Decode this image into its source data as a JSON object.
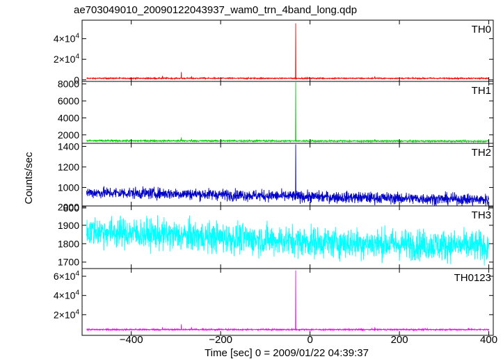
{
  "title": "ae703049010_20090122043937_wam0_trn_4band_long.qdp",
  "chart_data": {
    "type": "line",
    "xlabel": "Time [sec] 0 = 2009/01/22 04:39:37",
    "ylabel": "Counts/sec",
    "xlim": [
      -510,
      410
    ],
    "x_ticks": [
      -400,
      -200,
      0,
      200,
      400
    ],
    "x_tick_labels": [
      "−400",
      "−200",
      "0",
      "200",
      "400"
    ],
    "burst_time": -32,
    "panels": [
      {
        "name": "TH0",
        "color": "#ff0000",
        "ylim": [
          -1500,
          58000
        ],
        "yticks": [
          0,
          20000,
          40000
        ],
        "ytick_labels": [
          {
            "m": "0",
            "e": ""
          },
          {
            "m": "2×10",
            "e": "4"
          },
          {
            "m": "4×10",
            "e": "4"
          }
        ],
        "baseline": [
          [
            -500,
            1500
          ],
          [
            400,
            1500
          ]
        ],
        "noise": 300,
        "peak": 55000,
        "spikes": [
          [
            -330,
            4000
          ],
          [
            -288,
            7500
          ],
          [
            -265,
            3500
          ],
          [
            -240,
            2500
          ],
          [
            -105,
            2500
          ],
          [
            145,
            3500
          ],
          [
            355,
            2500
          ]
        ]
      },
      {
        "name": "TH1",
        "color": "#00cc00",
        "ylim": [
          1000,
          8300
        ],
        "yticks": [
          2000,
          4000,
          6000,
          8000
        ],
        "ytick_labels": [
          {
            "m": "2000",
            "e": ""
          },
          {
            "m": "4000",
            "e": ""
          },
          {
            "m": "6000",
            "e": ""
          },
          {
            "m": "8000",
            "e": ""
          }
        ],
        "baseline": [
          [
            -500,
            1300
          ],
          [
            400,
            1250
          ]
        ],
        "noise": 50,
        "peak": 8200,
        "spikes": [
          [
            -288,
            1700
          ],
          [
            -265,
            1500
          ],
          [
            145,
            1500
          ]
        ]
      },
      {
        "name": "TH2",
        "color": "#0000cc",
        "ylim": [
          820,
          1430
        ],
        "yticks": [
          800,
          1000,
          1200,
          1400
        ],
        "ytick_labels": [
          {
            "m": "800",
            "e": ""
          },
          {
            "m": "1000",
            "e": ""
          },
          {
            "m": "1200",
            "e": ""
          },
          {
            "m": "1400",
            "e": ""
          }
        ],
        "baseline": [
          [
            -500,
            950
          ],
          [
            -300,
            940
          ],
          [
            0,
            910
          ],
          [
            400,
            880
          ]
        ],
        "noise": 28,
        "peak": 1420,
        "spikes": []
      },
      {
        "name": "TH3",
        "color": "#00ffff",
        "ylim": [
          1665,
          2005
        ],
        "yticks": [
          1700,
          1800,
          1900,
          2000
        ],
        "ytick_labels": [
          {
            "m": "1700",
            "e": ""
          },
          {
            "m": "1800",
            "e": ""
          },
          {
            "m": "1900",
            "e": ""
          },
          {
            "m": "2000",
            "e": ""
          }
        ],
        "baseline": [
          [
            -500,
            1870
          ],
          [
            -300,
            1845
          ],
          [
            0,
            1810
          ],
          [
            400,
            1785
          ]
        ],
        "noise": 42,
        "peak": 0,
        "spikes": []
      },
      {
        "name": "TH0123",
        "color": "#ff00ff",
        "ylim": [
          -1500,
          68000
        ],
        "yticks": [
          20000,
          40000,
          60000
        ],
        "ytick_labels": [
          {
            "m": "2×10",
            "e": "4"
          },
          {
            "m": "4×10",
            "e": "4"
          },
          {
            "m": "6×10",
            "e": "4"
          }
        ],
        "baseline": [
          [
            -500,
            4500
          ],
          [
            400,
            4500
          ]
        ],
        "noise": 400,
        "peak": 66000,
        "spikes": [
          [
            -330,
            7000
          ],
          [
            -288,
            10000
          ],
          [
            -265,
            7000
          ],
          [
            -240,
            6000
          ],
          [
            -105,
            6000
          ],
          [
            145,
            7000
          ],
          [
            355,
            6000
          ]
        ]
      }
    ]
  }
}
